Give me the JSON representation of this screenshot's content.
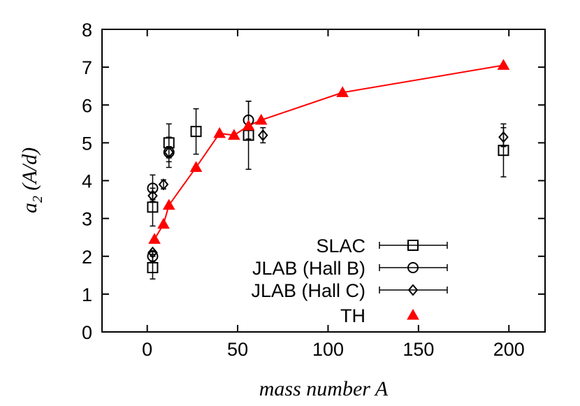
{
  "chart_data": {
    "type": "scatter",
    "xlabel": "mass number A",
    "ylabel": {
      "main": "a",
      "sub": "2",
      "rest": " (A/d)"
    },
    "xlim": [
      -25,
      220
    ],
    "ylim": [
      0,
      8
    ],
    "x_ticks": [
      "0",
      "50",
      "100",
      "150",
      "200"
    ],
    "y_ticks": [
      "0",
      "1",
      "2",
      "3",
      "4",
      "5",
      "6",
      "7",
      "8"
    ],
    "grid": false,
    "legend_position": "bottom-right",
    "series": [
      {
        "name": "SLAC",
        "marker": "square",
        "color": "#000000",
        "points": [
          {
            "x": 3,
            "y": 1.7,
            "err": 0.3
          },
          {
            "x": 3,
            "y": 3.3,
            "err": 0.5
          },
          {
            "x": 12,
            "y": 5.0,
            "err": 0.5
          },
          {
            "x": 27,
            "y": 5.3,
            "err": 0.6
          },
          {
            "x": 56,
            "y": 5.2,
            "err": 0.9
          },
          {
            "x": 197,
            "y": 4.8,
            "err": 0.7
          }
        ]
      },
      {
        "name": "JLAB (Hall B)",
        "marker": "circle",
        "color": "#000000",
        "points": [
          {
            "x": 3,
            "y": 2.0,
            "err": 0.15
          },
          {
            "x": 3,
            "y": 3.8,
            "err": 0.35
          },
          {
            "x": 12,
            "y": 4.75,
            "err": 0.4
          },
          {
            "x": 56,
            "y": 5.6,
            "err": 0.5
          }
        ]
      },
      {
        "name": "JLAB (Hall C)",
        "marker": "diamond",
        "color": "#000000",
        "points": [
          {
            "x": 3,
            "y": 2.1,
            "err": 0.05
          },
          {
            "x": 3,
            "y": 3.6,
            "err": 0.1
          },
          {
            "x": 9,
            "y": 3.9,
            "err": 0.12
          },
          {
            "x": 12,
            "y": 4.75,
            "err": 0.15
          },
          {
            "x": 64,
            "y": 5.2,
            "err": 0.2
          },
          {
            "x": 197,
            "y": 5.15,
            "err": 0.25
          }
        ]
      },
      {
        "name": "TH",
        "marker": "triangle",
        "color": "#ff0000",
        "connected": true,
        "points": [
          {
            "x": 4,
            "y": 2.45
          },
          {
            "x": 9,
            "y": 2.85
          },
          {
            "x": 12,
            "y": 3.35
          },
          {
            "x": 27,
            "y": 4.35
          },
          {
            "x": 40,
            "y": 5.25
          },
          {
            "x": 48,
            "y": 5.2
          },
          {
            "x": 56,
            "y": 5.45
          },
          {
            "x": 63,
            "y": 5.6
          },
          {
            "x": 108,
            "y": 6.33
          },
          {
            "x": 197,
            "y": 7.05
          }
        ]
      }
    ]
  }
}
